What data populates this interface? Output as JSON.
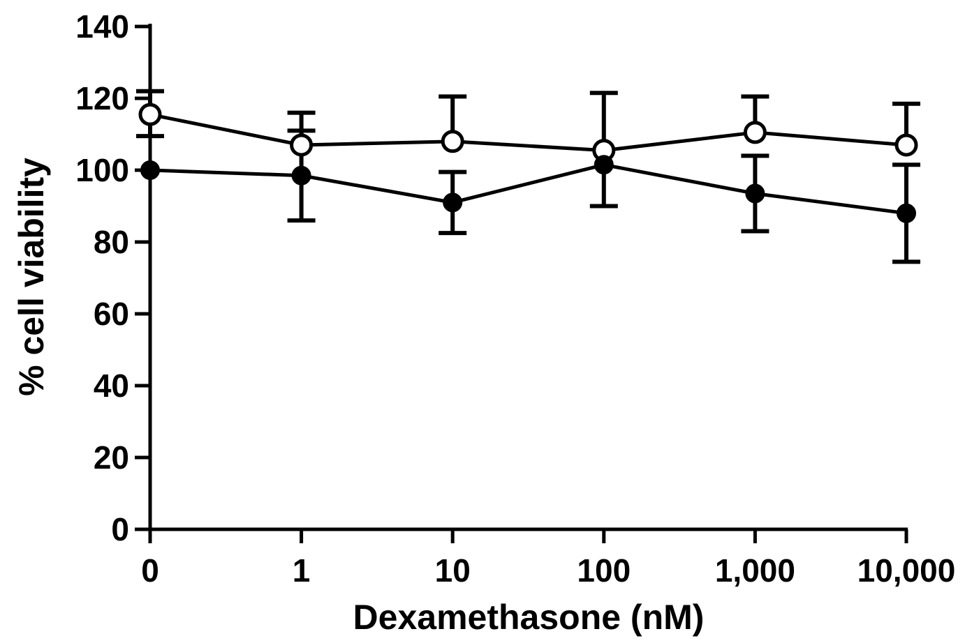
{
  "chart_data": {
    "type": "line",
    "title": "",
    "xlabel": "Dexamethasone (nM)",
    "ylabel": "% cell viability",
    "categories": [
      "0",
      "1",
      "10",
      "100",
      "1,000",
      "10,000"
    ],
    "ylim": [
      0,
      140
    ],
    "yticks": [
      0,
      20,
      40,
      60,
      80,
      100,
      120,
      140
    ],
    "grid": false,
    "legend": "none",
    "series": [
      {
        "marker": "open-circle",
        "color": "#000000",
        "values": [
          115.5,
          107,
          108,
          105.5,
          110.5,
          107
        ],
        "err_upper": [
          6.5,
          9,
          12.5,
          16,
          10,
          11.5
        ],
        "err_lower": [
          6,
          0,
          0,
          0,
          0,
          0
        ]
      },
      {
        "marker": "filled-circle",
        "color": "#000000",
        "values": [
          100,
          98.5,
          91,
          101.5,
          93.5,
          88
        ],
        "err_upper": [
          0,
          12.5,
          8.5,
          0,
          10.5,
          13.5
        ],
        "err_lower": [
          0,
          12.5,
          8.5,
          11.5,
          10.5,
          13.5
        ]
      }
    ]
  }
}
